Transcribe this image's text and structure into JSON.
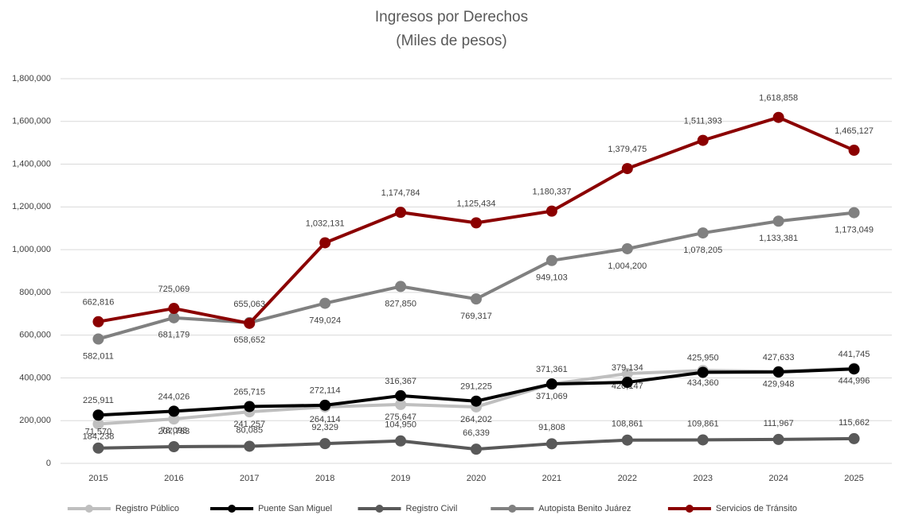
{
  "chart_data": {
    "type": "line",
    "title": "Ingresos por Derechos",
    "subtitle": "(Miles de pesos)",
    "categories": [
      "2015",
      "2016",
      "2017",
      "2018",
      "2019",
      "2020",
      "2021",
      "2022",
      "2023",
      "2024",
      "2025"
    ],
    "ylim": [
      0,
      1800000
    ],
    "yticks": [
      0,
      {
        "value": 200000,
        "label": "200,000"
      },
      {
        "value": 400000,
        "label": "400,000"
      },
      {
        "value": 600000,
        "label": "600,000"
      },
      {
        "value": 800000,
        "label": "800,000"
      },
      {
        "value": 1000000,
        "label": "1,000,000"
      },
      {
        "value": 1200000,
        "label": "1,200,000"
      },
      {
        "value": 1400000,
        "label": "1,400,000"
      },
      {
        "value": 1600000,
        "label": "1,600,000"
      },
      {
        "value": 1800000,
        "label": "1,800,000"
      }
    ],
    "grid": true,
    "legend": "bottom",
    "series": [
      {
        "name": "Registro Público",
        "color": "#bfbfbf",
        "values": [
          184238,
          207783,
          241257,
          264114,
          275647,
          264202,
          371069,
          420147,
          434360,
          429948,
          444996
        ],
        "value_labels": [
          "184,238",
          "207,783",
          "241,257",
          "264,114",
          "275,647",
          "264,202",
          "371,069",
          "420,147",
          "434,360",
          "429,948",
          "444,996"
        ]
      },
      {
        "name": "Puente San Miguel",
        "color": "#000000",
        "values": [
          225911,
          244026,
          265715,
          272114,
          316367,
          291225,
          371361,
          379134,
          425950,
          427633,
          441745
        ],
        "value_labels": [
          "225,911",
          "244,026",
          "265,715",
          "272,114",
          "316,367",
          "291,225",
          "371,361",
          "379,134",
          "425,950",
          "427,633",
          "441,745"
        ]
      },
      {
        "name": "Registro Civil",
        "color": "#595959",
        "values": [
          71570,
          78093,
          80085,
          92329,
          104950,
          66339,
          91808,
          108861,
          109861,
          111967,
          115662
        ],
        "value_labels": [
          "71,570",
          "78,093",
          "80,085",
          "92,329",
          "104,950",
          "66,339",
          "91,808",
          "108,861",
          "109,861",
          "111,967",
          "115,662"
        ]
      },
      {
        "name": "Autopista Benito Juárez",
        "color": "#808080",
        "values": [
          582011,
          681179,
          658652,
          749024,
          827850,
          769317,
          949103,
          1004200,
          1078205,
          1133381,
          1173049
        ],
        "value_labels": [
          "582,011",
          "681,179",
          "658,652",
          "749,024",
          "827,850",
          "769,317",
          "949,103",
          "1,004,200",
          "1,078,205",
          "1,133,381",
          "1,173,049"
        ]
      },
      {
        "name": "Servicios de Tránsito",
        "color": "#8b0000",
        "values": [
          662816,
          725069,
          655063,
          1032131,
          1174784,
          1125434,
          1180337,
          1379475,
          1511393,
          1618858,
          1465127
        ],
        "value_labels": [
          "662,816",
          "725,069",
          "655,063",
          "1,032,131",
          "1,174,784",
          "1,125,434",
          "1,180,337",
          "1,379,475",
          "1,511,393",
          "1,618,858",
          "1,465,127"
        ]
      }
    ]
  }
}
